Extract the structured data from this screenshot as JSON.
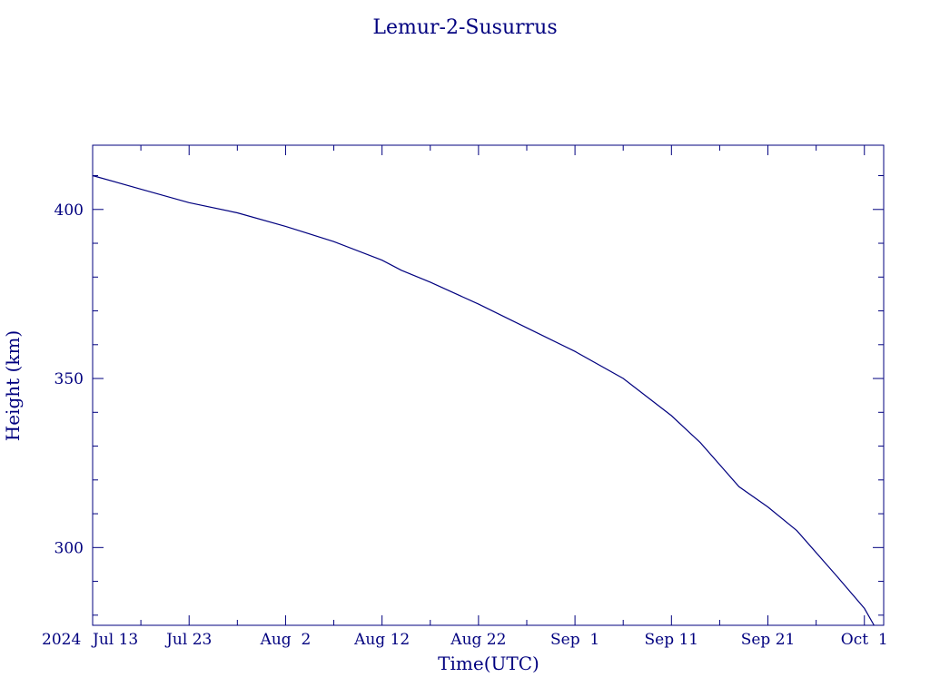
{
  "chart_data": {
    "type": "line",
    "title": "Lemur-2-Susurrus",
    "xlabel": "Time(UTC)",
    "ylabel": "Height (km)",
    "colors": {
      "axes": "#00007f",
      "line": "#00007f",
      "background": "#ffffff"
    },
    "xlim": [
      "2024-07-13",
      "2024-10-03"
    ],
    "ylim": [
      277,
      419
    ],
    "x_year_label": "2024",
    "x_ticks": [
      {
        "date": "2024-07-13",
        "label": "Jul 13"
      },
      {
        "date": "2024-07-23",
        "label": "Jul 23"
      },
      {
        "date": "2024-08-02",
        "label": "Aug  2"
      },
      {
        "date": "2024-08-12",
        "label": "Aug 12"
      },
      {
        "date": "2024-08-22",
        "label": "Aug 22"
      },
      {
        "date": "2024-09-01",
        "label": "Sep  1"
      },
      {
        "date": "2024-09-11",
        "label": "Sep 11"
      },
      {
        "date": "2024-09-21",
        "label": "Sep 21"
      },
      {
        "date": "2024-10-01",
        "label": "Oct  1"
      }
    ],
    "y_ticks": [
      {
        "value": 300,
        "label": "300"
      },
      {
        "value": 350,
        "label": "350"
      },
      {
        "value": 400,
        "label": "400"
      }
    ],
    "series": [
      {
        "values": [
          [
            "2024-07-13",
            410.0
          ],
          [
            "2024-07-18",
            406.0
          ],
          [
            "2024-07-23",
            402.0
          ],
          [
            "2024-07-28",
            399.0
          ],
          [
            "2024-08-02",
            395.0
          ],
          [
            "2024-08-07",
            390.5
          ],
          [
            "2024-08-12",
            385.0
          ],
          [
            "2024-08-14",
            382.0
          ],
          [
            "2024-08-17",
            378.5
          ],
          [
            "2024-08-22",
            372.0
          ],
          [
            "2024-08-27",
            365.0
          ],
          [
            "2024-09-01",
            358.0
          ],
          [
            "2024-09-06",
            350.0
          ],
          [
            "2024-09-11",
            339.0
          ],
          [
            "2024-09-14",
            331.0
          ],
          [
            "2024-09-18",
            318.0
          ],
          [
            "2024-09-21",
            312.0
          ],
          [
            "2024-09-24",
            305.0
          ],
          [
            "2024-09-28",
            292.0
          ],
          [
            "2024-10-01",
            282.0
          ],
          [
            "2024-10-02",
            277.0
          ]
        ]
      }
    ]
  }
}
